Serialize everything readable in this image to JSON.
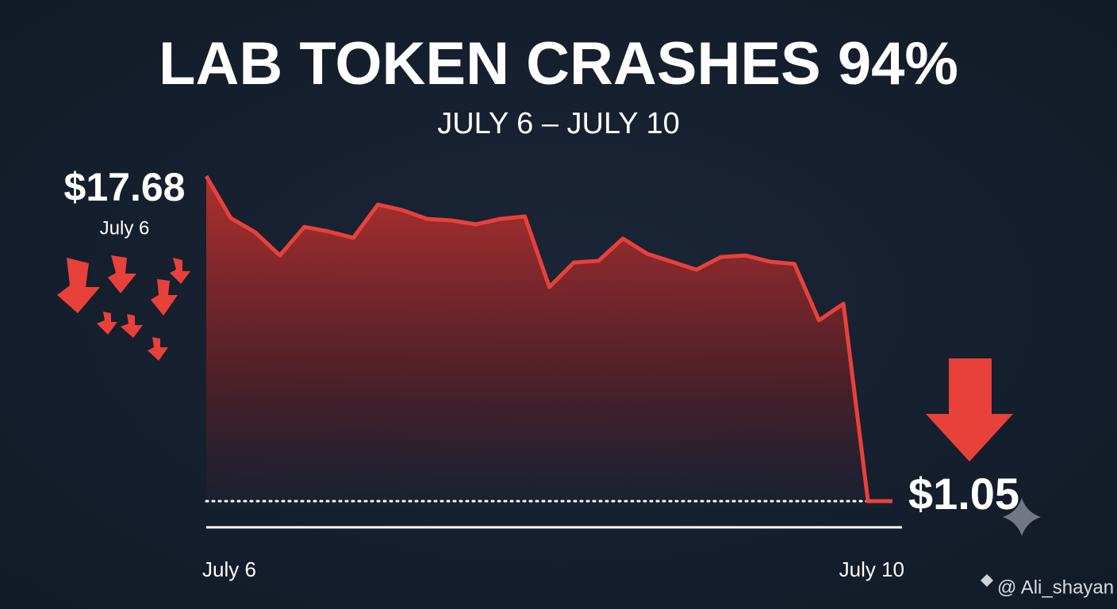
{
  "chart_data": {
    "type": "line",
    "title": "LAB TOKEN CRASHES 94%",
    "subtitle": "JULY 6 – JULY 10",
    "categories": [
      "July 6",
      null,
      null,
      null,
      null,
      null,
      null,
      null,
      null,
      null,
      null,
      null,
      null,
      null,
      null,
      null,
      null,
      null,
      null,
      null,
      null,
      null,
      null,
      null,
      null,
      null,
      null,
      null,
      "July 10"
    ],
    "values": [
      17.68,
      15.53,
      14.8,
      13.62,
      15.08,
      14.84,
      14.52,
      16.22,
      15.94,
      15.49,
      15.41,
      15.21,
      15.49,
      15.61,
      12.0,
      13.26,
      13.34,
      14.48,
      13.7,
      13.3,
      12.89,
      13.54,
      13.62,
      13.3,
      13.18,
      10.3,
      11.15,
      1.05,
      1.05
    ],
    "color": "#e8413a",
    "annotations": {
      "start_price": "$17.68",
      "start_date": "July 6",
      "end_price": "$1.05"
    },
    "watermark": "@ Ali_shayan"
  }
}
